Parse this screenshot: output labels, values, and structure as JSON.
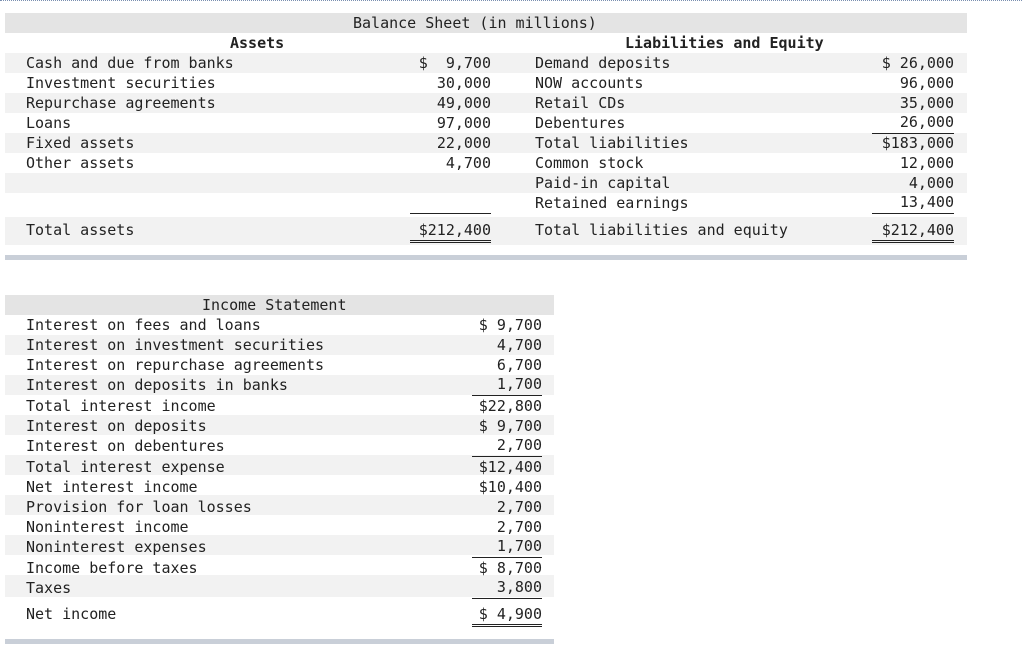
{
  "balance_sheet": {
    "title": "Balance Sheet (in millions)",
    "assets_header": "Assets",
    "liabilities_header": "Liabilities and Equity",
    "assets": [
      {
        "label": "Cash and due from banks",
        "value": "$  9,700"
      },
      {
        "label": "Investment securities",
        "value": "30,000"
      },
      {
        "label": "Repurchase agreements",
        "value": "49,000"
      },
      {
        "label": "Loans",
        "value": "97,000"
      },
      {
        "label": "Fixed assets",
        "value": "22,000"
      },
      {
        "label": "Other assets",
        "value": "4,700"
      }
    ],
    "total_assets": {
      "label": "Total assets",
      "value": "$212,400"
    },
    "liabilities": [
      {
        "label": "Demand deposits",
        "value": "$ 26,000"
      },
      {
        "label": "NOW accounts",
        "value": "96,000"
      },
      {
        "label": "Retail CDs",
        "value": "35,000"
      },
      {
        "label": "Debentures",
        "value": "26,000"
      },
      {
        "label": "Total liabilities",
        "value": "$183,000"
      },
      {
        "label": "Common stock",
        "value": "12,000"
      },
      {
        "label": "Paid-in capital",
        "value": "4,000"
      },
      {
        "label": "Retained earnings",
        "value": "13,400"
      }
    ],
    "total_liabilities_equity": {
      "label": "Total liabilities and equity",
      "value": "$212,400"
    }
  },
  "income_statement": {
    "title": "Income Statement",
    "rows": [
      {
        "label": "Interest on fees and loans",
        "value": "$ 9,700"
      },
      {
        "label": "Interest on investment securities",
        "value": "4,700"
      },
      {
        "label": "Interest on repurchase agreements",
        "value": "6,700"
      },
      {
        "label": "Interest on deposits in banks",
        "value": "1,700"
      },
      {
        "label": "Total interest income",
        "value": "$22,800"
      },
      {
        "label": "Interest on deposits",
        "value": "$ 9,700"
      },
      {
        "label": "Interest on debentures",
        "value": "2,700"
      },
      {
        "label": "Total interest expense",
        "value": "$12,400"
      },
      {
        "label": "Net interest income",
        "value": "$10,400"
      },
      {
        "label": "Provision for loan losses",
        "value": "2,700"
      },
      {
        "label": "Noninterest income",
        "value": "2,700"
      },
      {
        "label": "Noninterest expenses",
        "value": "1,700"
      },
      {
        "label": "Income before taxes",
        "value": "$ 8,700"
      },
      {
        "label": "Taxes",
        "value": "3,800"
      }
    ],
    "net_income": {
      "label": "Net income",
      "value": "$ 4,900"
    }
  }
}
